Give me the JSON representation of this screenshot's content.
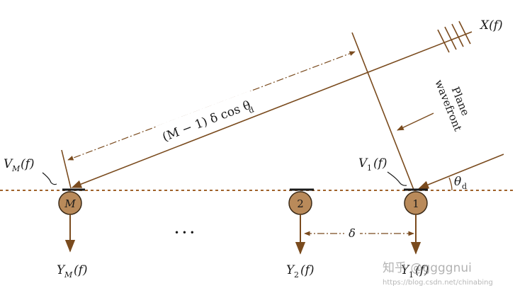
{
  "diagram": {
    "signal_label": "X(f)",
    "wavefront_label_line1": "Plane",
    "wavefront_label_line2": "wavefront",
    "path_difference_label": "(M − 1) δ cos θ",
    "path_difference_subscript": "d",
    "angle_label": "θ",
    "angle_subscript": "d",
    "spacing_label": "δ",
    "ellipsis": "• • •",
    "sensors": [
      {
        "marker": "M",
        "input_label": "V",
        "input_subscript": "M",
        "input_suffix": "(f)",
        "output_label": "Y",
        "output_subscript": "M",
        "output_suffix": "(f)"
      },
      {
        "marker": "2",
        "output_label": "Y",
        "output_subscript": "2",
        "output_suffix": "(f)"
      },
      {
        "marker": "1",
        "input_label": "V",
        "input_subscript": "1",
        "input_suffix": "(f)",
        "output_label": "Y",
        "output_subscript": "1",
        "output_suffix": "(f)"
      }
    ],
    "colors": {
      "arrow": "#7a4b1e",
      "baseline": "#a0622a",
      "sensor_fill": "#b98a5a",
      "sensor_stroke": "#3a2a18",
      "text": "#1a1a1a"
    }
  },
  "watermark": {
    "line1": "知乎 @ggggnui",
    "line2": "https://blog.csdn.net/chinabing"
  }
}
